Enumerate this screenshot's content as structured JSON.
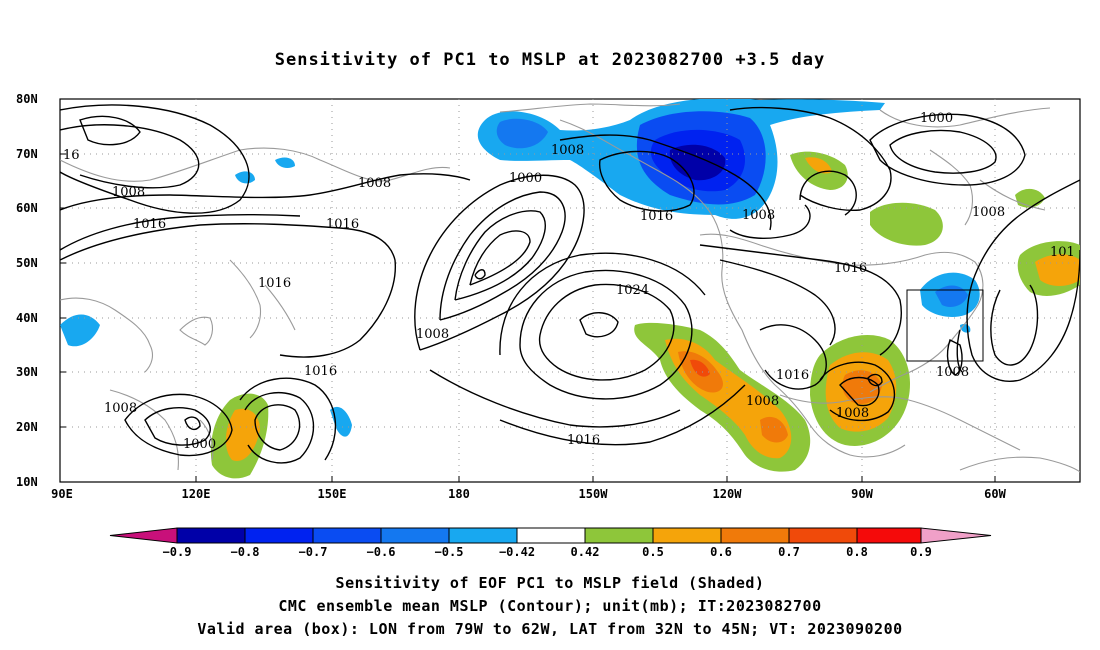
{
  "title": "Sensitivity of PC1 to MSLP at 2023082700 +3.5 day",
  "map": {
    "lat_ticks": [
      "80N",
      "70N",
      "60N",
      "50N",
      "40N",
      "30N",
      "20N",
      "10N"
    ],
    "lon_ticks": [
      "90E",
      "120E",
      "150E",
      "180",
      "150W",
      "120W",
      "90W",
      "60W"
    ],
    "contour_labels": [
      "16",
      "1008",
      "1008",
      "1016",
      "1000",
      "1008",
      "1016",
      "1008",
      "1016",
      "1000",
      "1008",
      "1016",
      "1024",
      "1008",
      "1016",
      "1008",
      "1016",
      "1008",
      "1008",
      "1000",
      "1016",
      "1008",
      "101",
      "1016",
      "1008"
    ],
    "valid_box": {
      "lon_from": "79W",
      "lon_to": "62W",
      "lat_from": "32N",
      "lat_to": "45N"
    }
  },
  "colorbar": {
    "labels": [
      "−0.9",
      "−0.8",
      "−0.7",
      "−0.6",
      "−0.5",
      "−0.42",
      "0.42",
      "0.5",
      "0.6",
      "0.7",
      "0.8",
      "0.9"
    ],
    "colors": [
      "#0000a8",
      "#0022f0",
      "#0a4cf2",
      "#1478f0",
      "#18a8f0",
      "#ffffff",
      "#8ec63a",
      "#f5a40a",
      "#f07a0a",
      "#f04a0a",
      "#f50a0a"
    ],
    "low_end_color": "#c8107a",
    "high_end_color": "#f0a0c8"
  },
  "captions": {
    "line1": "Sensitivity of EOF PC1 to MSLP field (Shaded)",
    "line2": "CMC ensemble mean MSLP (Contour); unit(mb); IT:2023082700",
    "line3": "Valid area (box): LON from 79W to 62W, LAT from 32N to 45N; VT: 2023090200"
  }
}
